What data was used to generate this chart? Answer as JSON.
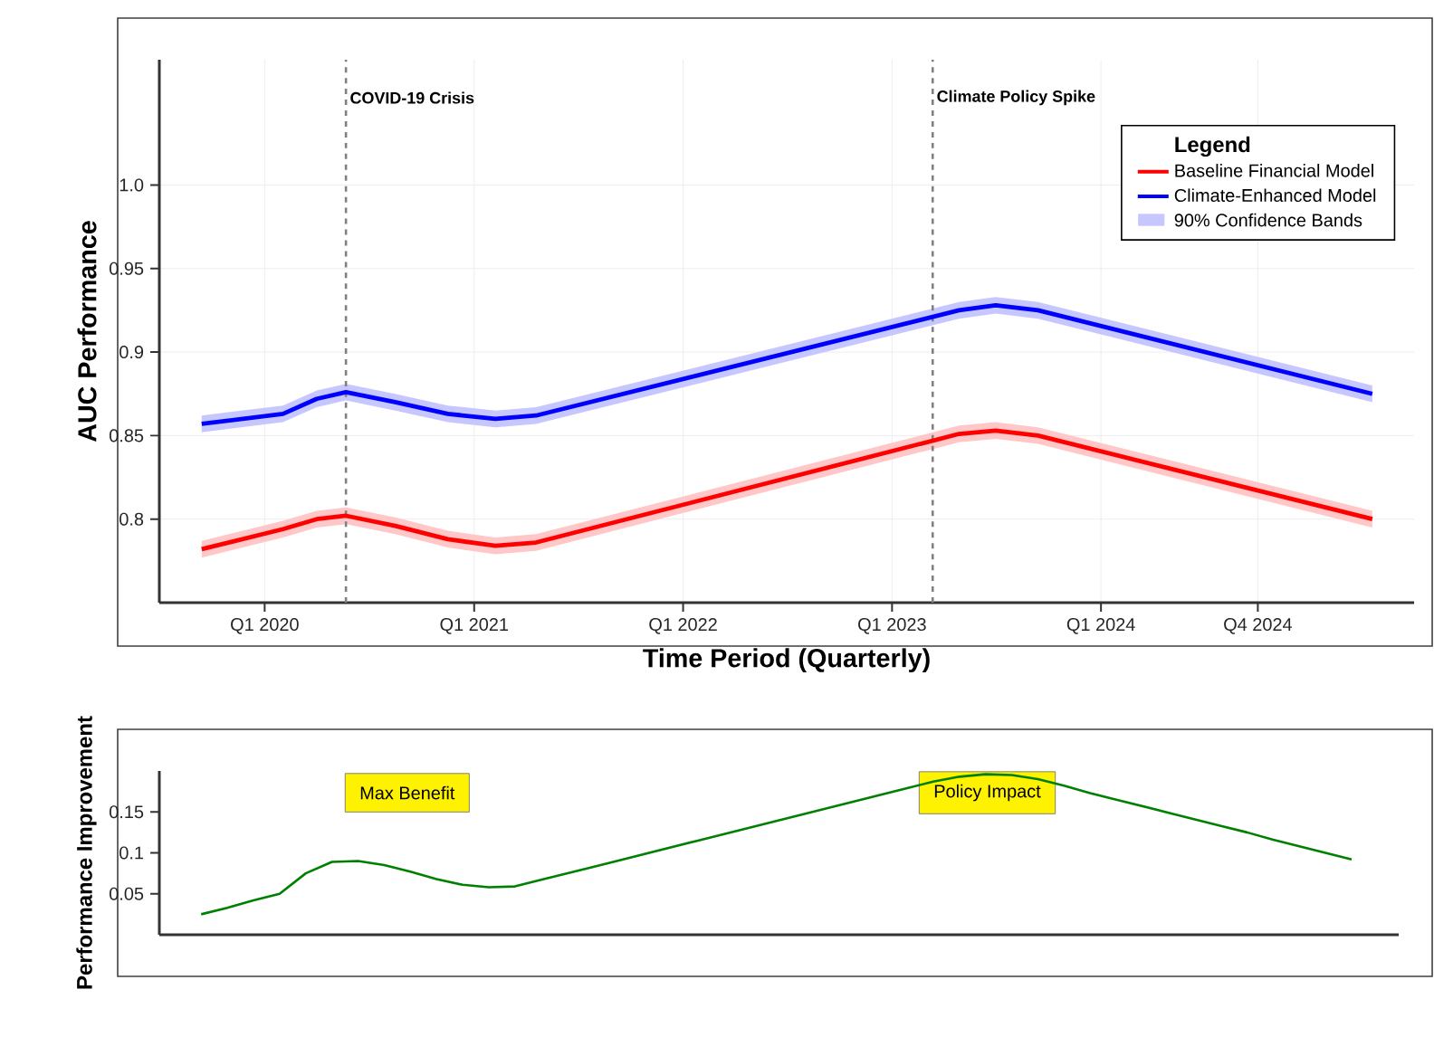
{
  "chart_data": [
    {
      "type": "line",
      "xlabel": "Time Period (Quarterly)",
      "ylabel": "AUC Performance",
      "legend_title": "Legend",
      "legend": "top right",
      "grid": true,
      "xlim": [
        "2019-07-01",
        "2025-07-01"
      ],
      "ylim": [
        0.75,
        1.075
      ],
      "xticks": [
        {
          "value": "2020-01-01",
          "label": "Q1 2020"
        },
        {
          "value": "2021-01-01",
          "label": "Q1 2021"
        },
        {
          "value": "2022-01-01",
          "label": "Q1 2022"
        },
        {
          "value": "2023-01-01",
          "label": "Q1 2023"
        },
        {
          "value": "2024-01-01",
          "label": "Q1 2024"
        },
        {
          "value": "2024-10-01",
          "label": "Q4 2024"
        }
      ],
      "yticks": [
        0.8,
        0.85,
        0.9,
        0.95,
        {
          "value": 1.0,
          "label": "1.0"
        }
      ],
      "x": [
        "2019-09-13",
        "2020-02-02",
        "2020-04-01",
        "2020-05-22",
        "2020-08-16",
        "2020-11-16",
        "2021-02-07",
        "2021-04-19",
        "2023-04-28",
        "2023-07-01",
        "2023-09-13",
        "2025-04-19"
      ],
      "series": [
        {
          "name": "Baseline Financial Model",
          "color": "#ff0000",
          "values": [
            0.782,
            0.794,
            0.8,
            0.802,
            0.796,
            0.788,
            0.784,
            0.786,
            0.851,
            0.853,
            0.85,
            0.8
          ],
          "lower": [
            0.777,
            0.789,
            0.795,
            0.797,
            0.791,
            0.783,
            0.779,
            0.781,
            0.846,
            0.848,
            0.845,
            0.795
          ],
          "upper": [
            0.787,
            0.799,
            0.805,
            0.807,
            0.801,
            0.793,
            0.789,
            0.791,
            0.856,
            0.858,
            0.855,
            0.805
          ]
        },
        {
          "name": "Climate-Enhanced Model",
          "color": "#0000ff",
          "values": [
            0.857,
            0.863,
            0.872,
            0.876,
            0.87,
            0.863,
            0.86,
            0.862,
            0.925,
            0.928,
            0.925,
            0.875
          ],
          "lower": [
            0.852,
            0.858,
            0.867,
            0.871,
            0.865,
            0.858,
            0.855,
            0.857,
            0.92,
            0.923,
            0.92,
            0.87
          ],
          "upper": [
            0.862,
            0.868,
            0.877,
            0.881,
            0.875,
            0.868,
            0.865,
            0.867,
            0.93,
            0.933,
            0.93,
            0.88
          ]
        }
      ],
      "ref_lines": [
        {
          "axis": "x",
          "value": "2020-05-22",
          "label": "COVID-19 Crisis",
          "color": "#808080",
          "line_style": "dashed"
        },
        {
          "axis": "x",
          "value": "2023-03-13",
          "label": "Climate Policy Spike",
          "color": "#808080",
          "line_style": "dashed"
        }
      ],
      "annotations": [
        "90% Confidence Bands"
      ]
    },
    {
      "type": "line",
      "ylabel": "Performance Improvement",
      "tick_labels": "y",
      "ylim": [
        0,
        0.2
      ],
      "yticks": [
        0.05,
        0.1,
        0.15
      ],
      "categories": [
        null,
        null,
        null,
        null,
        null,
        null,
        null,
        null,
        null,
        null,
        null,
        null,
        null,
        null,
        null,
        null,
        null,
        null,
        null,
        null,
        null,
        null,
        null,
        null,
        null,
        null,
        null,
        null,
        null,
        null,
        null,
        null,
        null,
        null,
        null,
        null,
        null,
        null,
        null,
        null,
        null,
        null,
        null,
        null,
        null
      ],
      "series": [
        {
          "color": "#008000",
          "values": [
            0.025,
            0.033,
            0.042,
            0.05,
            0.075,
            0.089,
            0.09,
            0.085,
            0.077,
            0.068,
            0.061,
            0.058,
            0.059,
            0.067,
            0.075,
            0.083,
            0.091,
            0.099,
            0.107,
            0.115,
            0.123,
            0.131,
            0.139,
            0.147,
            0.155,
            0.163,
            0.171,
            0.179,
            0.187,
            0.193,
            0.196,
            0.195,
            0.19,
            0.182,
            0.173,
            0.165,
            0.157,
            0.149,
            0.141,
            0.133,
            0.125,
            0.116,
            0.108,
            0.1,
            0.092
          ]
        }
      ],
      "annotations": [
        "Max Benefit",
        "Policy Impact"
      ]
    }
  ]
}
